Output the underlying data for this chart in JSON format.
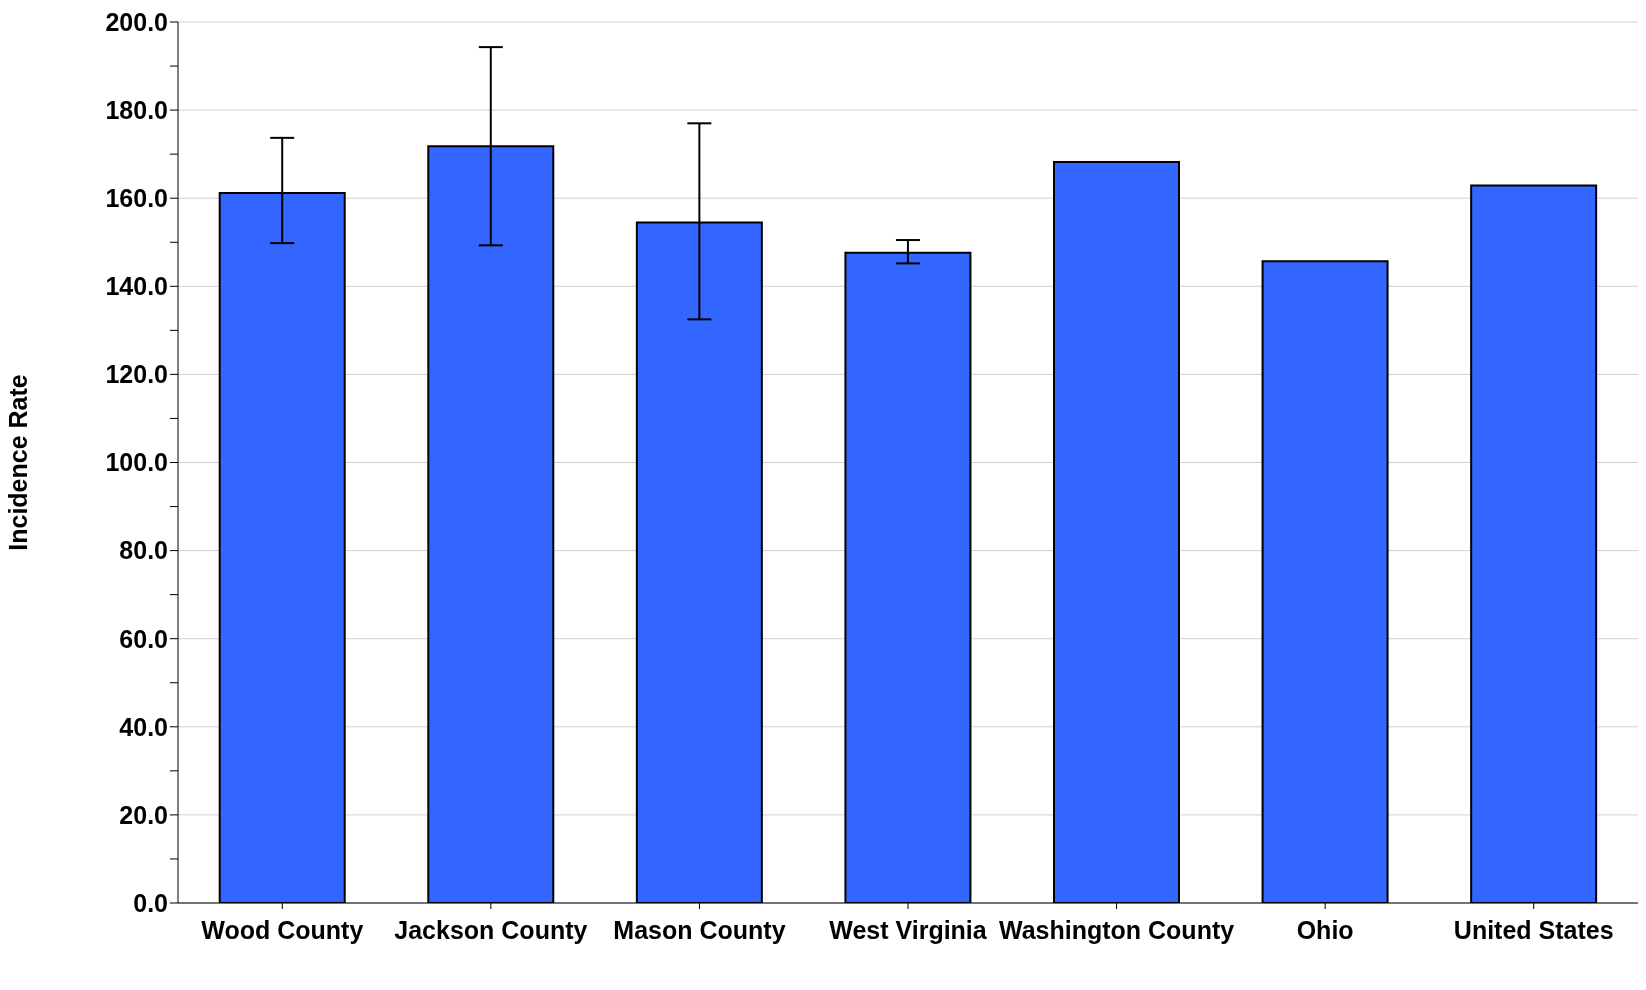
{
  "chart_data": {
    "type": "bar",
    "ylabel": "Incidence Rate",
    "categories": [
      "Wood County",
      "Jackson County",
      "Mason County",
      "West Virginia",
      "Washington County",
      "Ohio",
      "United States"
    ],
    "values": [
      161.2,
      171.8,
      154.5,
      147.6,
      168.2,
      145.7,
      162.9
    ],
    "errors": [
      [
        149.8,
        173.7
      ],
      [
        149.3,
        194.3
      ],
      [
        132.5,
        177.0
      ],
      [
        145.2,
        150.5
      ],
      null,
      null,
      null
    ],
    "color": "#3366ff",
    "ylim": [
      0,
      200
    ],
    "yticks": [
      {
        "value": 0,
        "label": "0.0"
      },
      {
        "value": 10,
        "label": null
      },
      {
        "value": 20,
        "label": "20.0"
      },
      {
        "value": 30,
        "label": null
      },
      {
        "value": 40,
        "label": "40.0"
      },
      {
        "value": 50,
        "label": null
      },
      {
        "value": 60,
        "label": "60.0"
      },
      {
        "value": 70,
        "label": null
      },
      {
        "value": 80,
        "label": "80.0"
      },
      {
        "value": 90,
        "label": null
      },
      {
        "value": 100,
        "label": "100.0"
      },
      {
        "value": 110,
        "label": null
      },
      {
        "value": 120,
        "label": "120.0"
      },
      {
        "value": 130,
        "label": null
      },
      {
        "value": 140,
        "label": "140.0"
      },
      {
        "value": 150,
        "label": null
      },
      {
        "value": 160,
        "label": "160.0"
      },
      {
        "value": 170,
        "label": null
      },
      {
        "value": 180,
        "label": "180.0"
      },
      {
        "value": 190,
        "label": null
      },
      {
        "value": 200,
        "label": "200.0"
      }
    ],
    "grid": "y"
  }
}
